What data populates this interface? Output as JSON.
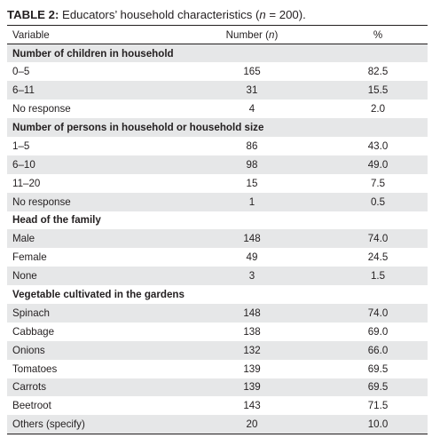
{
  "caption": {
    "label": "TABLE 2:",
    "text_before_n": " Educators’ household characteristics (",
    "n_symbol": "n",
    "text_after_n": " = 200)."
  },
  "headers": {
    "variable": "Variable",
    "number_prefix": "Number (",
    "number_symbol": "n",
    "number_suffix": ")",
    "percent": "%"
  },
  "groups": [
    {
      "title": "Number of children in household",
      "rows": [
        {
          "label": "0–5",
          "number": "165",
          "percent": "82.5"
        },
        {
          "label": "6–11",
          "number": "31",
          "percent": "15.5"
        },
        {
          "label": "No response",
          "number": "4",
          "percent": "2.0"
        }
      ]
    },
    {
      "title": "Number of persons in household or household size",
      "rows": [
        {
          "label": "1–5",
          "number": "86",
          "percent": "43.0"
        },
        {
          "label": "6–10",
          "number": "98",
          "percent": "49.0"
        },
        {
          "label": "11–20",
          "number": "15",
          "percent": "7.5"
        },
        {
          "label": "No response",
          "number": "1",
          "percent": "0.5"
        }
      ]
    },
    {
      "title": "Head of the family",
      "rows": [
        {
          "label": "Male",
          "number": "148",
          "percent": "74.0"
        },
        {
          "label": "Female",
          "number": "49",
          "percent": "24.5"
        },
        {
          "label": "None",
          "number": "3",
          "percent": "1.5"
        }
      ]
    },
    {
      "title": "Vegetable cultivated in the gardens",
      "rows": [
        {
          "label": "Spinach",
          "number": "148",
          "percent": "74.0"
        },
        {
          "label": "Cabbage",
          "number": "138",
          "percent": "69.0"
        },
        {
          "label": "Onions",
          "number": "132",
          "percent": "66.0"
        },
        {
          "label": "Tomatoes",
          "number": "139",
          "percent": "69.5"
        },
        {
          "label": "Carrots",
          "number": "139",
          "percent": "69.5"
        },
        {
          "label": "Beetroot",
          "number": "143",
          "percent": "71.5"
        },
        {
          "label": "Others (specify)",
          "number": "20",
          "percent": "10.0"
        }
      ]
    }
  ],
  "colors": {
    "row_shading": "#e6e7e8",
    "text": "#231f20",
    "rules": "#231f20"
  }
}
